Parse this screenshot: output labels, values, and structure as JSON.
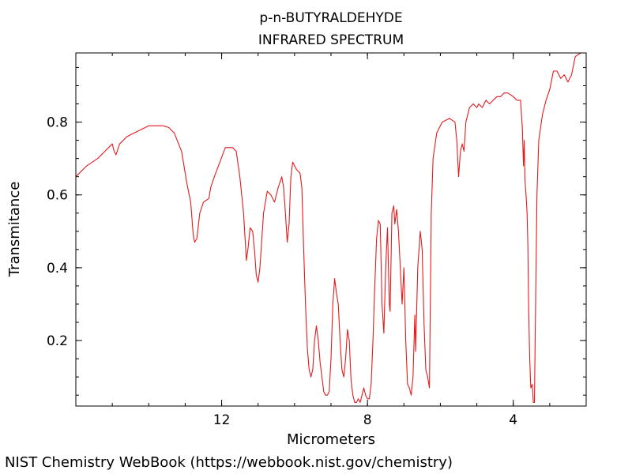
{
  "chart_data": {
    "type": "line",
    "title_lines": [
      "p-n-BUTYRALDEHYDE",
      "INFRARED SPECTRUM"
    ],
    "xlabel": "Micrometers",
    "ylabel": "Transmitance",
    "x_reversed": true,
    "xlim": [
      16,
      2
    ],
    "ylim": [
      0.02,
      0.99
    ],
    "x_ticks": [
      12,
      8,
      4
    ],
    "x_tick_labels": [
      "12",
      "8",
      "4"
    ],
    "y_ticks": [
      0.2,
      0.4,
      0.6,
      0.8
    ],
    "y_tick_labels": [
      "0.2",
      "0.4",
      "0.6",
      "0.8"
    ],
    "grid": false,
    "series": [
      {
        "color": "#e41a1c",
        "points": [
          [
            16.0,
            0.65
          ],
          [
            15.7,
            0.68
          ],
          [
            15.4,
            0.7
          ],
          [
            15.2,
            0.72
          ],
          [
            15.0,
            0.74
          ],
          [
            14.95,
            0.72
          ],
          [
            14.9,
            0.71
          ],
          [
            14.8,
            0.74
          ],
          [
            14.6,
            0.76
          ],
          [
            14.4,
            0.77
          ],
          [
            14.2,
            0.78
          ],
          [
            14.0,
            0.79
          ],
          [
            13.6,
            0.79
          ],
          [
            13.45,
            0.785
          ],
          [
            13.3,
            0.77
          ],
          [
            13.1,
            0.72
          ],
          [
            12.95,
            0.63
          ],
          [
            12.85,
            0.58
          ],
          [
            12.78,
            0.49
          ],
          [
            12.74,
            0.47
          ],
          [
            12.68,
            0.48
          ],
          [
            12.6,
            0.55
          ],
          [
            12.5,
            0.58
          ],
          [
            12.35,
            0.59
          ],
          [
            12.3,
            0.62
          ],
          [
            12.2,
            0.65
          ],
          [
            12.05,
            0.69
          ],
          [
            11.9,
            0.73
          ],
          [
            11.7,
            0.73
          ],
          [
            11.6,
            0.72
          ],
          [
            11.5,
            0.65
          ],
          [
            11.4,
            0.55
          ],
          [
            11.32,
            0.42
          ],
          [
            11.28,
            0.45
          ],
          [
            11.22,
            0.51
          ],
          [
            11.15,
            0.5
          ],
          [
            11.1,
            0.45
          ],
          [
            11.05,
            0.38
          ],
          [
            11.0,
            0.36
          ],
          [
            10.95,
            0.4
          ],
          [
            10.85,
            0.55
          ],
          [
            10.75,
            0.61
          ],
          [
            10.65,
            0.6
          ],
          [
            10.55,
            0.58
          ],
          [
            10.45,
            0.62
          ],
          [
            10.35,
            0.65
          ],
          [
            10.3,
            0.62
          ],
          [
            10.25,
            0.55
          ],
          [
            10.2,
            0.47
          ],
          [
            10.15,
            0.52
          ],
          [
            10.1,
            0.65
          ],
          [
            10.05,
            0.69
          ],
          [
            9.95,
            0.67
          ],
          [
            9.85,
            0.66
          ],
          [
            9.8,
            0.62
          ],
          [
            9.75,
            0.45
          ],
          [
            9.7,
            0.3
          ],
          [
            9.65,
            0.18
          ],
          [
            9.6,
            0.12
          ],
          [
            9.55,
            0.1
          ],
          [
            9.5,
            0.12
          ],
          [
            9.45,
            0.2
          ],
          [
            9.4,
            0.24
          ],
          [
            9.35,
            0.2
          ],
          [
            9.3,
            0.14
          ],
          [
            9.25,
            0.1
          ],
          [
            9.2,
            0.06
          ],
          [
            9.15,
            0.05
          ],
          [
            9.1,
            0.05
          ],
          [
            9.05,
            0.06
          ],
          [
            9.0,
            0.15
          ],
          [
            8.95,
            0.3
          ],
          [
            8.9,
            0.37
          ],
          [
            8.85,
            0.33
          ],
          [
            8.8,
            0.3
          ],
          [
            8.75,
            0.2
          ],
          [
            8.7,
            0.12
          ],
          [
            8.65,
            0.1
          ],
          [
            8.6,
            0.15
          ],
          [
            8.55,
            0.23
          ],
          [
            8.5,
            0.2
          ],
          [
            8.45,
            0.09
          ],
          [
            8.4,
            0.05
          ],
          [
            8.35,
            0.03
          ],
          [
            8.3,
            0.03
          ],
          [
            8.25,
            0.04
          ],
          [
            8.2,
            0.03
          ],
          [
            8.15,
            0.05
          ],
          [
            8.1,
            0.07
          ],
          [
            8.05,
            0.05
          ],
          [
            8.0,
            0.04
          ],
          [
            7.95,
            0.04
          ],
          [
            7.9,
            0.08
          ],
          [
            7.85,
            0.2
          ],
          [
            7.8,
            0.35
          ],
          [
            7.75,
            0.48
          ],
          [
            7.7,
            0.53
          ],
          [
            7.65,
            0.52
          ],
          [
            7.6,
            0.3
          ],
          [
            7.55,
            0.22
          ],
          [
            7.5,
            0.4
          ],
          [
            7.45,
            0.51
          ],
          [
            7.4,
            0.3
          ],
          [
            7.38,
            0.28
          ],
          [
            7.33,
            0.55
          ],
          [
            7.28,
            0.57
          ],
          [
            7.25,
            0.52
          ],
          [
            7.2,
            0.56
          ],
          [
            7.15,
            0.5
          ],
          [
            7.1,
            0.4
          ],
          [
            7.05,
            0.3
          ],
          [
            7.0,
            0.4
          ],
          [
            6.95,
            0.2
          ],
          [
            6.9,
            0.08
          ],
          [
            6.85,
            0.07
          ],
          [
            6.8,
            0.05
          ],
          [
            6.75,
            0.1
          ],
          [
            6.7,
            0.27
          ],
          [
            6.68,
            0.17
          ],
          [
            6.62,
            0.4
          ],
          [
            6.55,
            0.5
          ],
          [
            6.5,
            0.45
          ],
          [
            6.45,
            0.25
          ],
          [
            6.4,
            0.12
          ],
          [
            6.35,
            0.1
          ],
          [
            6.3,
            0.07
          ],
          [
            6.25,
            0.55
          ],
          [
            6.2,
            0.7
          ],
          [
            6.1,
            0.77
          ],
          [
            5.95,
            0.8
          ],
          [
            5.75,
            0.81
          ],
          [
            5.6,
            0.8
          ],
          [
            5.55,
            0.75
          ],
          [
            5.5,
            0.65
          ],
          [
            5.45,
            0.72
          ],
          [
            5.4,
            0.74
          ],
          [
            5.35,
            0.72
          ],
          [
            5.3,
            0.8
          ],
          [
            5.2,
            0.84
          ],
          [
            5.1,
            0.85
          ],
          [
            5.0,
            0.84
          ],
          [
            4.95,
            0.85
          ],
          [
            4.85,
            0.84
          ],
          [
            4.75,
            0.86
          ],
          [
            4.65,
            0.85
          ],
          [
            4.55,
            0.86
          ],
          [
            4.45,
            0.87
          ],
          [
            4.35,
            0.87
          ],
          [
            4.25,
            0.88
          ],
          [
            4.15,
            0.88
          ],
          [
            4.0,
            0.87
          ],
          [
            3.9,
            0.86
          ],
          [
            3.8,
            0.86
          ],
          [
            3.75,
            0.78
          ],
          [
            3.72,
            0.68
          ],
          [
            3.7,
            0.75
          ],
          [
            3.68,
            0.64
          ],
          [
            3.65,
            0.6
          ],
          [
            3.62,
            0.55
          ],
          [
            3.6,
            0.46
          ],
          [
            3.58,
            0.3
          ],
          [
            3.55,
            0.15
          ],
          [
            3.52,
            0.07
          ],
          [
            3.48,
            0.08
          ],
          [
            3.45,
            0.03
          ],
          [
            3.42,
            0.03
          ],
          [
            3.4,
            0.2
          ],
          [
            3.35,
            0.6
          ],
          [
            3.3,
            0.75
          ],
          [
            3.2,
            0.82
          ],
          [
            3.1,
            0.86
          ],
          [
            3.0,
            0.89
          ],
          [
            2.9,
            0.94
          ],
          [
            2.8,
            0.94
          ],
          [
            2.7,
            0.92
          ],
          [
            2.6,
            0.93
          ],
          [
            2.5,
            0.91
          ],
          [
            2.4,
            0.93
          ],
          [
            2.3,
            0.98
          ],
          [
            2.15,
            0.99
          ],
          [
            2.05,
            0.99
          ]
        ]
      }
    ]
  },
  "credit": "NIST Chemistry WebBook (https://webbook.nist.gov/chemistry)"
}
